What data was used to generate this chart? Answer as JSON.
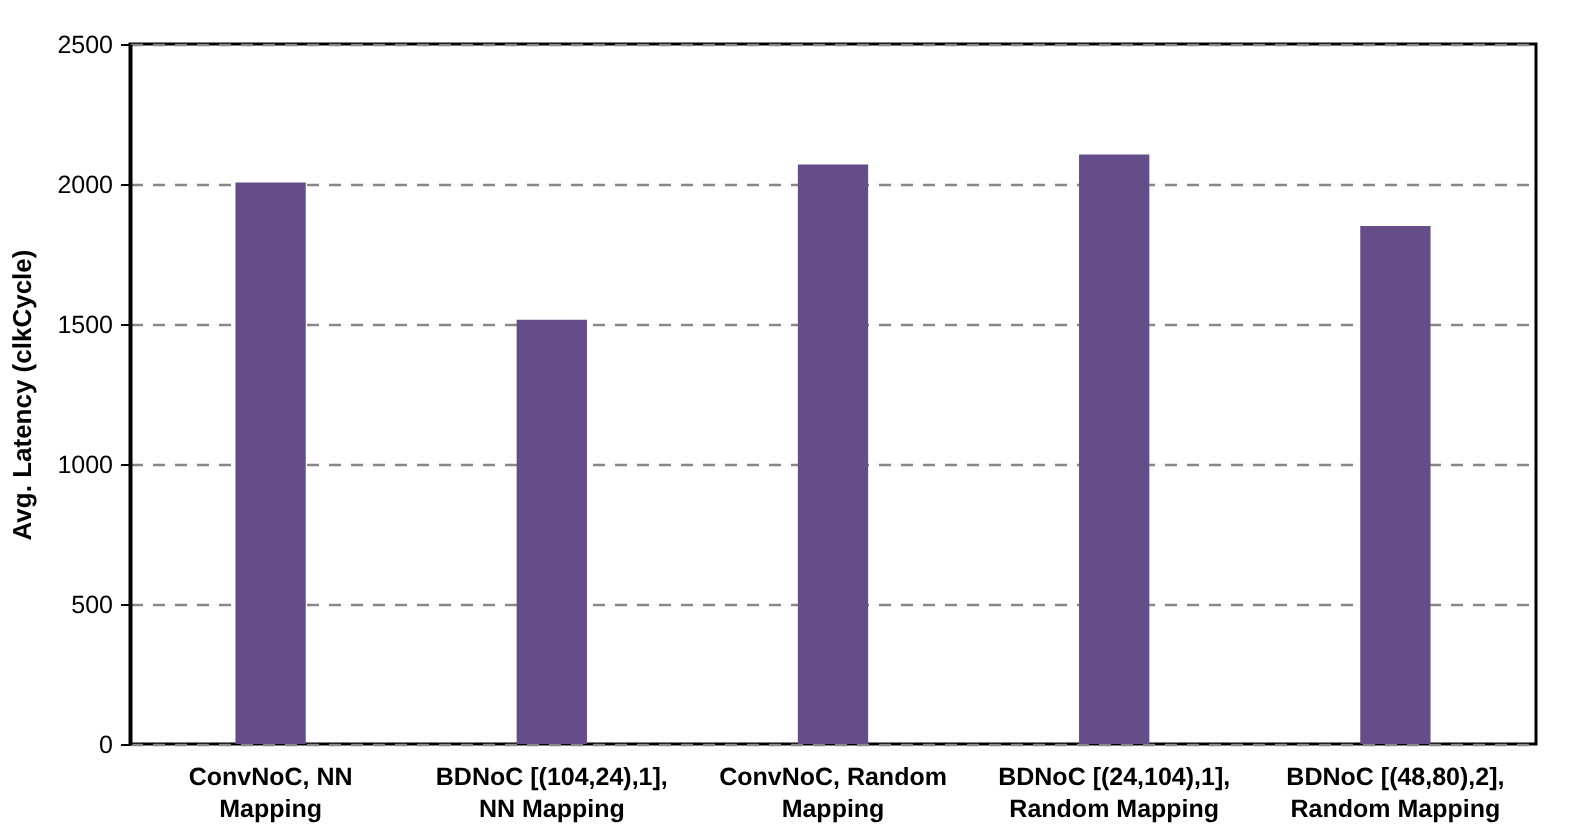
{
  "chart_data": {
    "type": "bar",
    "ylabel": "Avg. Latency (clkCycle)",
    "categories": [
      "ConvNoC, NN\nMapping",
      "BDNoC [(104,24),1],\nNN Mapping",
      "ConvNoC, Random\nMapping",
      "BDNoC [(24,104),1],\nRandom Mapping",
      "BDNoC [(48,80),2],\nRandom Mapping"
    ],
    "values": [
      2005,
      1515,
      2070,
      2105,
      1850
    ],
    "color": "#654d8a",
    "ylim": [
      0,
      2500
    ],
    "yticks": [
      0,
      500,
      1000,
      1500,
      2000,
      2500
    ],
    "grid": "y"
  }
}
